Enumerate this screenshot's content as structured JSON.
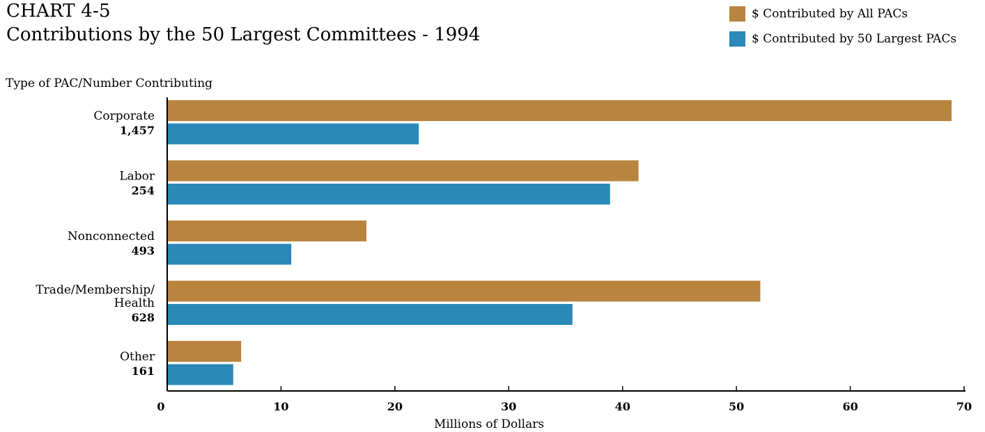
{
  "header": {
    "line1": "CHART 4-5",
    "line2": "Contributions by the 50 Largest Committees - 1994"
  },
  "legend": {
    "items": [
      {
        "label": "$ Contributed by All PACs",
        "color": "#b9843e"
      },
      {
        "label": "$ Contributed by 50 Largest PACs",
        "color": "#2a89b8"
      }
    ]
  },
  "chart_data": {
    "type": "bar",
    "orientation": "horizontal",
    "title": "CHART 4-5 Contributions by the 50 Largest Committees - 1994",
    "ylabel": "Type of PAC/Number Contributing",
    "xlabel": "Millions of Dollars",
    "xlim": [
      0,
      70
    ],
    "xticks": [
      0,
      10,
      20,
      30,
      40,
      50,
      60,
      70
    ],
    "grid": false,
    "legend_position": "top-right",
    "categories": [
      {
        "lines": [
          "Corporate"
        ],
        "count": "1,457"
      },
      {
        "lines": [
          "Labor"
        ],
        "count": "254"
      },
      {
        "lines": [
          "Nonconnected"
        ],
        "count": "493"
      },
      {
        "lines": [
          "Trade/Membership/",
          "Health"
        ],
        "count": "628"
      },
      {
        "lines": [
          "Other"
        ],
        "count": "161"
      }
    ],
    "series": [
      {
        "name": "$ Contributed by All PACs",
        "color": "#b9843e",
        "values": [
          68.9,
          41.4,
          17.5,
          52.1,
          6.5
        ]
      },
      {
        "name": "$ Contributed by 50 Largest PACs",
        "color": "#2a89b8",
        "values": [
          22.1,
          38.9,
          10.9,
          35.6,
          5.8
        ]
      }
    ]
  }
}
